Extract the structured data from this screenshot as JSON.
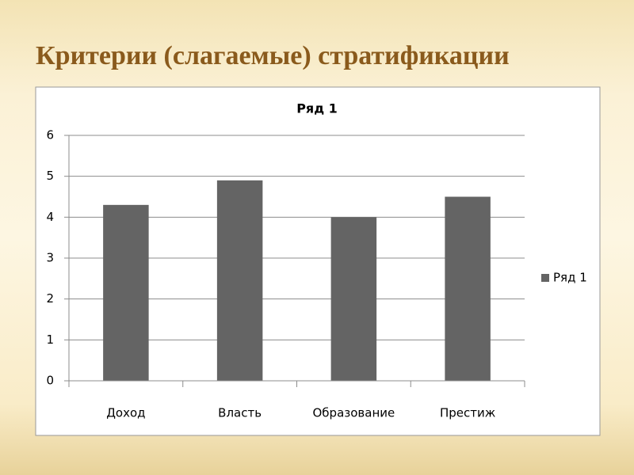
{
  "slide": {
    "title": "Критерии (слагаемые) стратификации"
  },
  "chart_data": {
    "type": "bar",
    "title": "Ряд 1",
    "categories": [
      "Доход",
      "Власть",
      "Образование",
      "Престиж"
    ],
    "series": [
      {
        "name": "Ряд 1",
        "color": "#646464",
        "values": [
          4.3,
          4.9,
          4.0,
          4.5
        ]
      }
    ],
    "ylim": [
      0,
      6
    ],
    "yticks": [
      0,
      1,
      2,
      3,
      4,
      5,
      6
    ],
    "grid": true,
    "legend": "right"
  }
}
